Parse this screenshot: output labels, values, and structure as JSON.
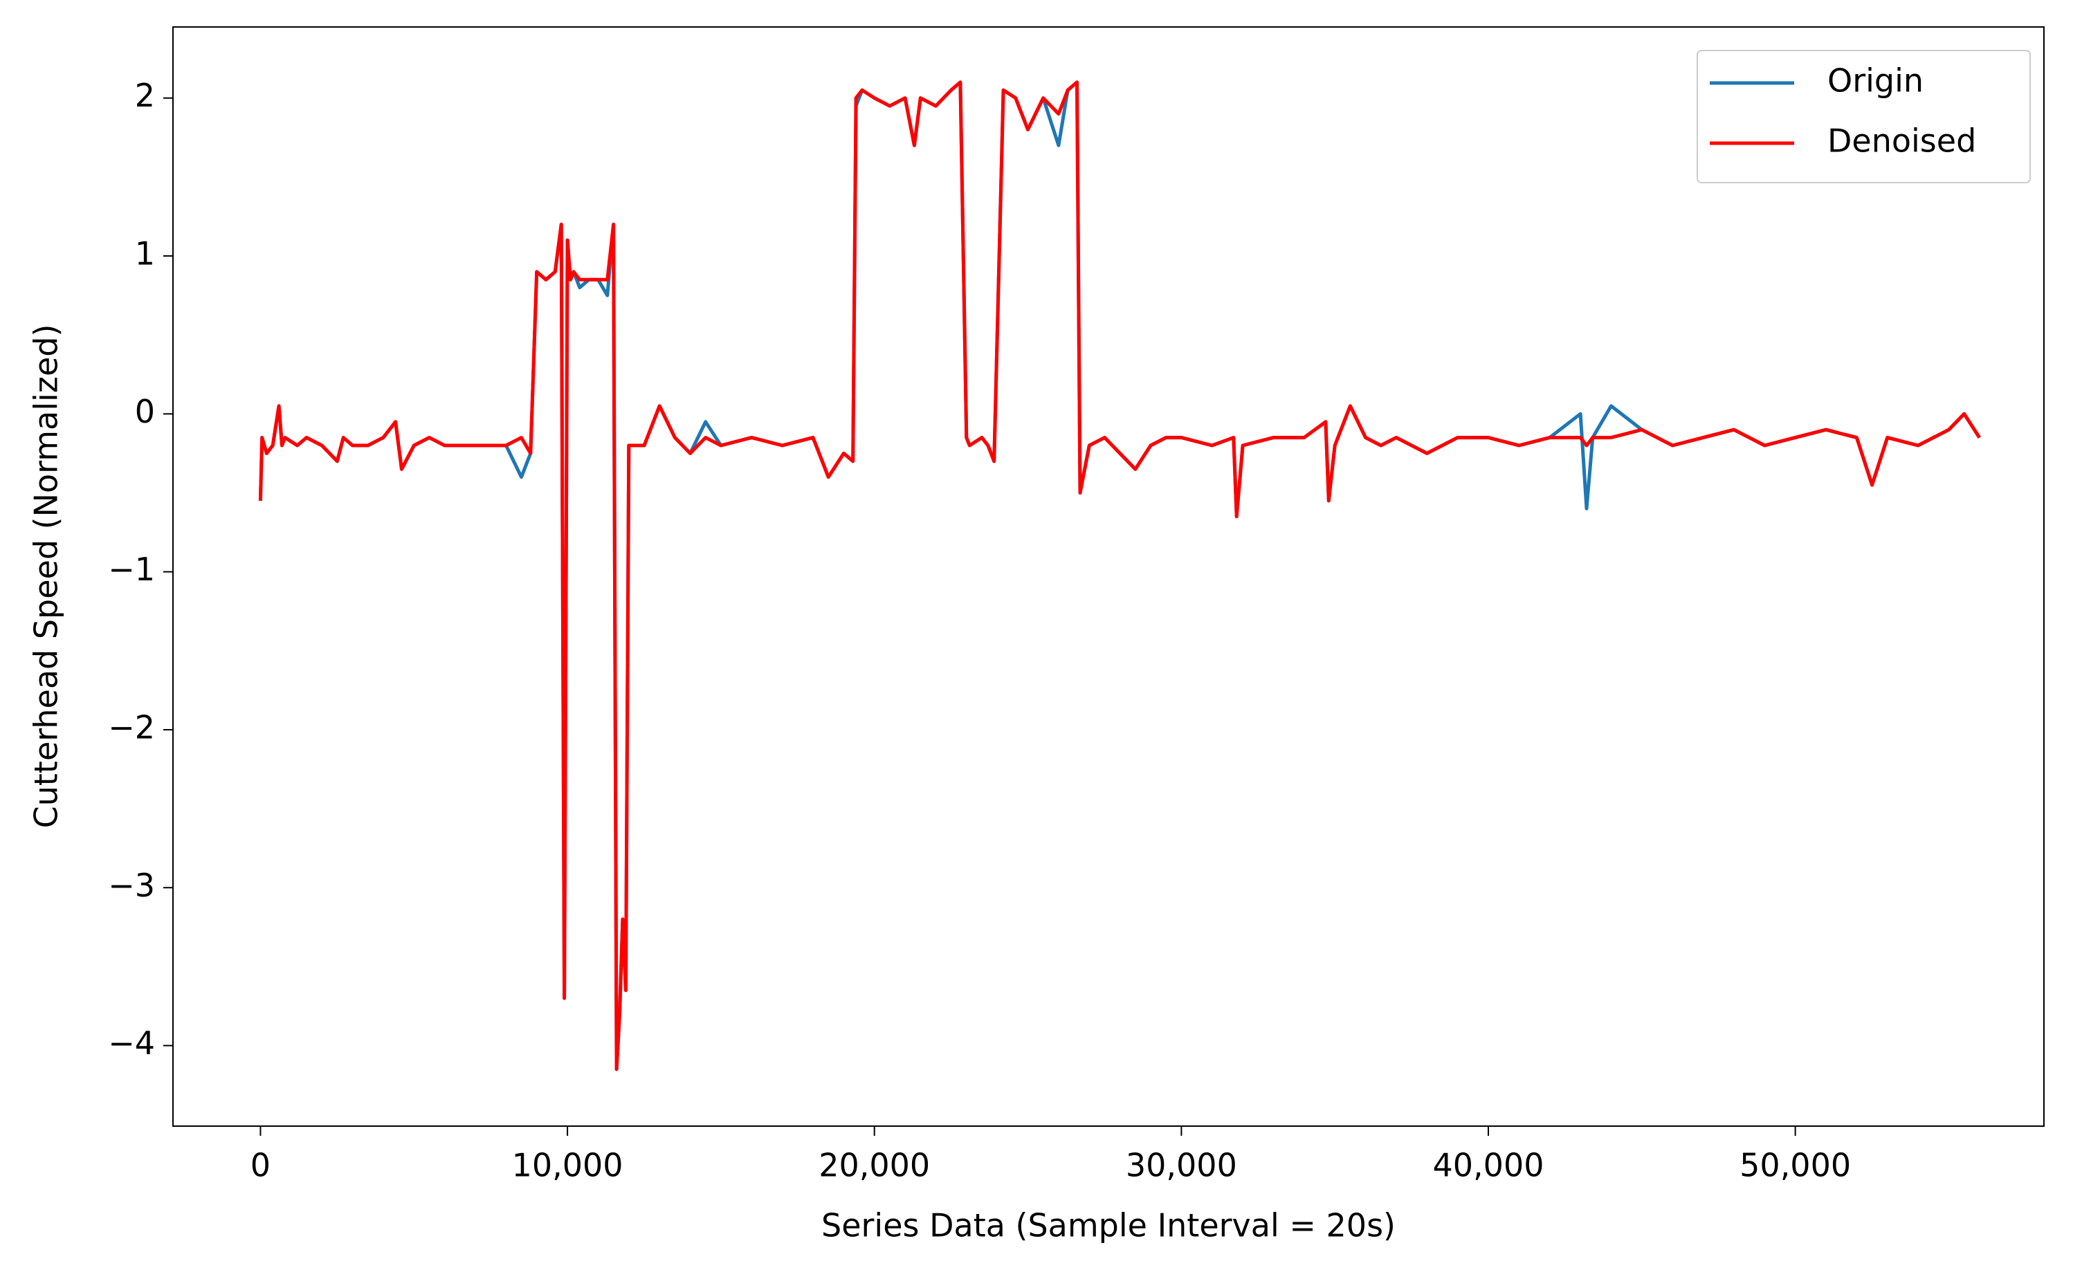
{
  "chart_data": {
    "type": "line",
    "xlabel": "Series Data (Sample Interval = 20s)",
    "ylabel": "Cutterhead Speed (Normalized)",
    "legend": "upper right",
    "xlim": [
      -2850,
      58100
    ],
    "ylim": [
      -4.51,
      2.45
    ],
    "xticks": [
      0,
      {
        "value": 10000,
        "label": "10,000"
      },
      {
        "value": 20000,
        "label": "20,000"
      },
      {
        "value": 30000,
        "label": "30,000"
      },
      {
        "value": 40000,
        "label": "40,000"
      },
      {
        "value": 50000,
        "label": "50,000"
      }
    ],
    "yticks": [
      {
        "value": -4,
        "label": "−4"
      },
      {
        "value": -3,
        "label": "−3"
      },
      {
        "value": -2,
        "label": "−2"
      },
      {
        "value": -1,
        "label": "−1"
      },
      0,
      1,
      2
    ],
    "x": [
      0,
      50,
      200,
      400,
      600,
      700,
      800,
      1200,
      1500,
      2000,
      2500,
      2700,
      3000,
      3500,
      4000,
      4400,
      4600,
      5000,
      5500,
      6000,
      7000,
      8000,
      8500,
      8800,
      9000,
      9300,
      9600,
      9800,
      9900,
      10000,
      10100,
      10200,
      10400,
      10700,
      11000,
      11300,
      11500,
      11600,
      11700,
      11800,
      11900,
      12000,
      12200,
      12500,
      13000,
      13500,
      14000,
      14500,
      15000,
      16000,
      17000,
      18000,
      18500,
      19000,
      19300,
      19400,
      19600,
      20000,
      20500,
      21000,
      21300,
      21500,
      22000,
      22500,
      22800,
      23000,
      23100,
      23500,
      23700,
      23900,
      24200,
      24600,
      25000,
      25500,
      26000,
      26300,
      26600,
      26700,
      27000,
      27500,
      28000,
      28500,
      29000,
      29500,
      30000,
      31000,
      31700,
      31800,
      32000,
      33000,
      34000,
      34700,
      34800,
      35000,
      35500,
      36000,
      36500,
      37000,
      38000,
      39000,
      40000,
      41000,
      42000,
      43000,
      43200,
      43400,
      44000,
      45000,
      46000,
      47000,
      48000,
      49000,
      50000,
      51000,
      52000,
      52500,
      53000,
      54000,
      55000,
      55500,
      56000
    ],
    "series": [
      {
        "name": "Origin",
        "color": "#1f77b4",
        "values": [
          -0.55,
          -0.15,
          -0.25,
          -0.2,
          0.05,
          -0.2,
          -0.15,
          -0.2,
          -0.15,
          -0.2,
          -0.3,
          -0.15,
          -0.2,
          -0.2,
          -0.15,
          -0.05,
          -0.35,
          -0.2,
          -0.15,
          -0.2,
          -0.2,
          -0.2,
          -0.4,
          -0.25,
          0.9,
          0.85,
          0.9,
          1.2,
          -3.7,
          1.1,
          0.85,
          0.9,
          0.8,
          0.85,
          0.85,
          0.75,
          1.2,
          -4.15,
          -3.8,
          -3.2,
          -3.65,
          -0.2,
          -0.2,
          -0.2,
          0.05,
          -0.15,
          -0.25,
          -0.05,
          -0.2,
          -0.15,
          -0.2,
          -0.15,
          -0.4,
          -0.25,
          -0.3,
          1.95,
          2.05,
          2.0,
          1.95,
          2.0,
          1.7,
          2.0,
          1.95,
          2.05,
          2.1,
          -0.15,
          -0.2,
          -0.15,
          -0.2,
          -0.3,
          2.05,
          2.0,
          1.8,
          2.0,
          1.7,
          2.05,
          2.1,
          -0.5,
          -0.2,
          -0.15,
          -0.25,
          -0.35,
          -0.2,
          -0.15,
          -0.15,
          -0.2,
          -0.15,
          -0.65,
          -0.2,
          -0.15,
          -0.15,
          -0.05,
          -0.55,
          -0.2,
          0.05,
          -0.15,
          -0.2,
          -0.15,
          -0.25,
          -0.15,
          -0.15,
          -0.2,
          -0.15,
          0.0,
          -0.6,
          -0.15,
          0.05,
          -0.1,
          -0.2,
          -0.15,
          -0.1,
          -0.2,
          -0.15,
          -0.1,
          -0.15,
          -0.45,
          -0.15,
          -0.2,
          -0.1,
          0.0,
          -0.15
        ]
      },
      {
        "name": "Denoised",
        "color": "#ff0000",
        "values": [
          -0.55,
          -0.15,
          -0.25,
          -0.2,
          0.05,
          -0.2,
          -0.15,
          -0.2,
          -0.15,
          -0.2,
          -0.3,
          -0.15,
          -0.2,
          -0.2,
          -0.15,
          -0.05,
          -0.35,
          -0.2,
          -0.15,
          -0.2,
          -0.2,
          -0.2,
          -0.15,
          -0.25,
          0.9,
          0.85,
          0.9,
          1.2,
          -3.7,
          1.1,
          0.85,
          0.9,
          0.85,
          0.85,
          0.85,
          0.85,
          1.2,
          -4.15,
          -3.8,
          -3.2,
          -3.65,
          -0.2,
          -0.2,
          -0.2,
          0.05,
          -0.15,
          -0.25,
          -0.15,
          -0.2,
          -0.15,
          -0.2,
          -0.15,
          -0.4,
          -0.25,
          -0.3,
          2.0,
          2.05,
          2.0,
          1.95,
          2.0,
          1.7,
          2.0,
          1.95,
          2.05,
          2.1,
          -0.15,
          -0.2,
          -0.15,
          -0.2,
          -0.3,
          2.05,
          2.0,
          1.8,
          2.0,
          1.9,
          2.05,
          2.1,
          -0.5,
          -0.2,
          -0.15,
          -0.25,
          -0.35,
          -0.2,
          -0.15,
          -0.15,
          -0.2,
          -0.15,
          -0.65,
          -0.2,
          -0.15,
          -0.15,
          -0.05,
          -0.55,
          -0.2,
          0.05,
          -0.15,
          -0.2,
          -0.15,
          -0.25,
          -0.15,
          -0.15,
          -0.2,
          -0.15,
          -0.15,
          -0.2,
          -0.15,
          -0.15,
          -0.1,
          -0.2,
          -0.15,
          -0.1,
          -0.2,
          -0.15,
          -0.1,
          -0.15,
          -0.45,
          -0.15,
          -0.2,
          -0.1,
          0.0,
          -0.15
        ]
      }
    ]
  }
}
